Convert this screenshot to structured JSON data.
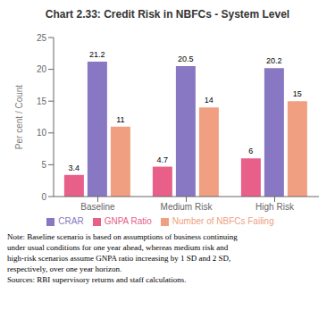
{
  "chart_data": {
    "type": "bar",
    "title": "Chart 2.33: Credit Risk in NBFCs - System Level",
    "categories": [
      "Baseline",
      "Medium Risk",
      "High Risk"
    ],
    "series": [
      {
        "name": "GNPA Ratio",
        "color": "#e8608a",
        "values": [
          3.4,
          4.7,
          6.0
        ]
      },
      {
        "name": "CRAR",
        "color": "#8878c3",
        "values": [
          21.2,
          20.5,
          20.2
        ]
      },
      {
        "name": "Number of NBFCs Failing",
        "color": "#f0a080",
        "values": [
          11,
          14,
          15
        ]
      }
    ],
    "ylabel": "Per cent / Count",
    "ylim": [
      0,
      25
    ],
    "yticks": [
      0,
      5,
      10,
      15,
      20,
      25
    ],
    "data_labels": true,
    "legend": "bottom",
    "grid": false,
    "annotations": [
      "Note: Baseline scenario is based on assumptions of business continuing",
      "under usual conditions for one year ahead, whereas medium risk and",
      "high-risk scenarios assume GNPA ratio increasing by 1 SD and 2 SD,",
      "respectively, over one year horizon.",
      "Sources: RBI supervisory returns and staff calculations."
    ]
  }
}
